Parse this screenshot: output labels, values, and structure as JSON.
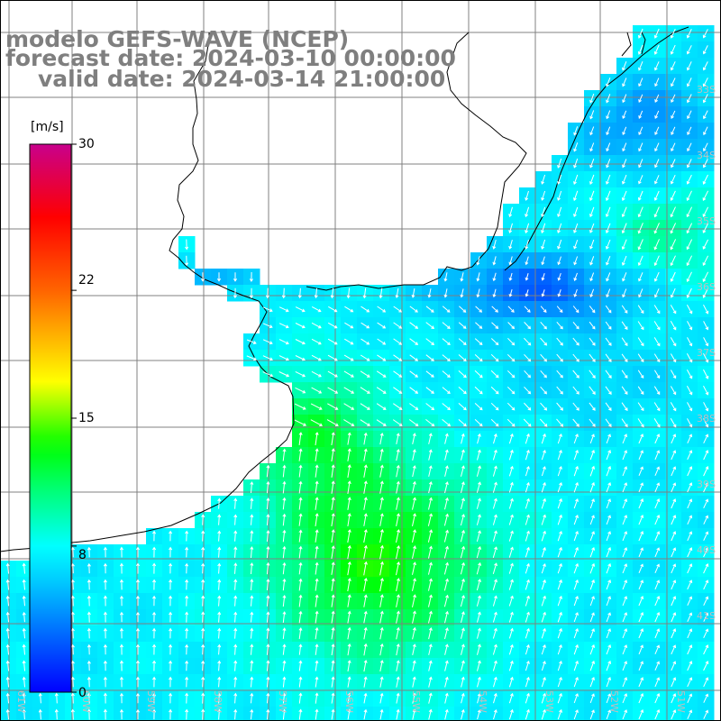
{
  "title": {
    "line1": "modelo GEFS-WAVE (NCEP)",
    "line2": "forecast date: 2024-03-10 00:00:00",
    "line3": "valid date: 2024-03-14 21:00:00"
  },
  "colorbar": {
    "unit": "[m/s]",
    "ticks": [
      "30",
      "22",
      "15",
      "8",
      "0"
    ],
    "tick_values": [
      30,
      22,
      15,
      8,
      0
    ],
    "range": [
      0,
      30
    ],
    "colors": [
      "#0000ff",
      "#0070ff",
      "#00c8ff",
      "#00ffff",
      "#00ff60",
      "#00ff00",
      "#80ff00",
      "#ffff00",
      "#ff8000",
      "#ff0000",
      "#ff0070",
      "#c80090"
    ]
  },
  "map": {
    "lat_labels": [
      "33S",
      "34S",
      "35S",
      "36S",
      "37S",
      "38S",
      "39S",
      "40S",
      "41S"
    ],
    "lon_labels": [
      "61W",
      "60W",
      "59W",
      "58W",
      "57W",
      "56W",
      "55W",
      "54W",
      "53W",
      "52W",
      "51W"
    ],
    "label_color": "#bfbfbf",
    "grid_color": "#808080",
    "coast_color": "#000000",
    "arrow_color": "#ffffff"
  }
}
